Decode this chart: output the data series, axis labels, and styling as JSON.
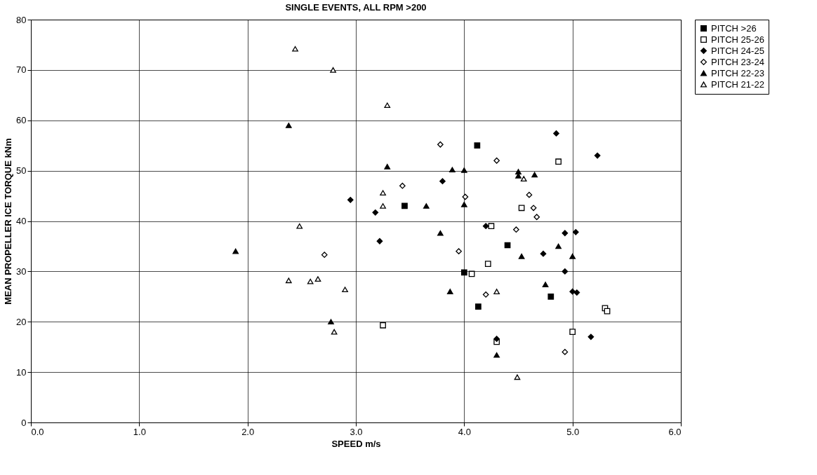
{
  "chart_data": {
    "type": "scatter",
    "title": "SINGLE EVENTS, ALL RPM >200",
    "xlabel": "SPEED m/s",
    "ylabel": "MEAN PROPELLER ICE TORQUE kNm",
    "xlim": [
      0,
      6
    ],
    "xticks": [
      {
        "value": 0,
        "label": "0.0"
      },
      {
        "value": 1,
        "label": "1.0"
      },
      {
        "value": 2,
        "label": "2.0"
      },
      {
        "value": 3,
        "label": "3.0"
      },
      {
        "value": 4,
        "label": "4.0"
      },
      {
        "value": 5,
        "label": "5.0"
      },
      {
        "value": 6,
        "label": "6.0"
      }
    ],
    "ylim": [
      0,
      80
    ],
    "yticks": [
      0,
      10,
      20,
      30,
      40,
      50,
      60,
      70,
      80
    ],
    "grid": true,
    "legend": "right",
    "series": [
      {
        "name": "PITCH >26",
        "color": "#000000",
        "marker": "square",
        "x": [
          3.45,
          4.12,
          4.0,
          4.13,
          4.4,
          4.8
        ],
        "values": [
          43,
          55,
          29.8,
          23,
          35.2,
          25
        ]
      },
      {
        "name": "PITCH 25-26",
        "color": "#ffffff",
        "marker": "square",
        "x": [
          3.25,
          4.07,
          4.25,
          4.22,
          4.53,
          4.87,
          4.3,
          5.0,
          5.3,
          5.32
        ],
        "values": [
          19.3,
          29.5,
          39,
          31.5,
          42.6,
          51.8,
          16,
          18,
          22.7,
          22.1
        ]
      },
      {
        "name": "PITCH 24-25",
        "color": "#000000",
        "marker": "diamond",
        "x": [
          2.95,
          3.18,
          3.22,
          3.8,
          4.2,
          4.85,
          5.23,
          4.73,
          4.93,
          5.03,
          4.93,
          5.0,
          5.04,
          4.3,
          5.17
        ],
        "values": [
          44.2,
          41.7,
          36,
          47.9,
          39,
          57.4,
          53,
          33.5,
          37.6,
          37.8,
          30,
          26,
          25.8,
          16.6,
          17
        ]
      },
      {
        "name": "PITCH 23-24",
        "color": "#ffffff",
        "marker": "diamond",
        "x": [
          2.71,
          3.43,
          3.78,
          4.01,
          3.95,
          4.3,
          4.2,
          4.48,
          4.6,
          4.64,
          4.67,
          4.93
        ],
        "values": [
          33.3,
          47,
          55.2,
          44.8,
          34,
          52,
          25.4,
          38.3,
          45.2,
          42.6,
          40.8,
          14
        ]
      },
      {
        "name": "PITCH 22-23",
        "color": "#000000",
        "marker": "triangle",
        "x": [
          1.89,
          2.38,
          2.77,
          3.29,
          3.65,
          3.78,
          3.87,
          3.89,
          4.0,
          4.0,
          4.3,
          4.5,
          4.5,
          4.65,
          4.53,
          4.75,
          4.87,
          5.0
        ],
        "values": [
          34,
          59,
          20,
          50.8,
          43,
          37.6,
          26,
          50.2,
          50.1,
          43.3,
          13.4,
          49.8,
          49,
          49.2,
          33,
          27.4,
          35,
          33
        ]
      },
      {
        "name": "PITCH 21-22",
        "color": "#ffffff",
        "marker": "triangle",
        "x": [
          2.44,
          2.79,
          3.29,
          2.48,
          2.38,
          2.58,
          2.65,
          2.9,
          2.8,
          3.25,
          3.25,
          4.3,
          4.55,
          4.49
        ],
        "values": [
          74.2,
          70,
          63,
          39,
          28.2,
          28,
          28.5,
          26.4,
          18,
          45.6,
          43,
          26,
          48.4,
          9
        ]
      }
    ]
  }
}
